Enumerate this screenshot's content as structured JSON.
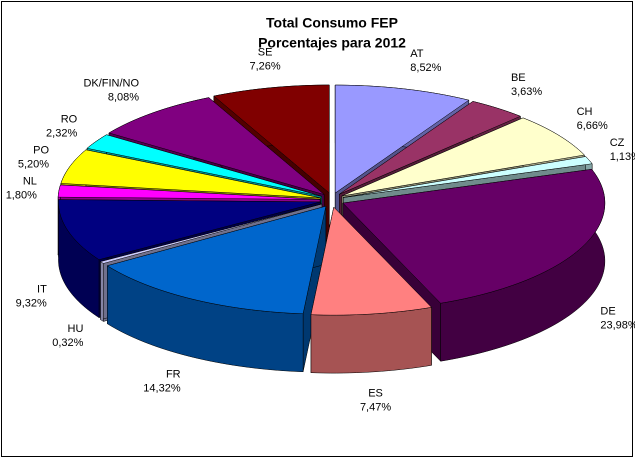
{
  "chart_data": {
    "type": "pie3d",
    "title": "Total Consumo FEP",
    "subtitle": "Porcentajes para 2012",
    "categories": [
      "AT",
      "BE",
      "CH",
      "CZ",
      "DE",
      "ES",
      "FR",
      "HU",
      "IT",
      "NL",
      "PO",
      "RO",
      "DK/FIN/NO",
      "SE"
    ],
    "values": [
      8.52,
      3.63,
      6.66,
      1.13,
      23.98,
      7.47,
      14.32,
      0.32,
      9.32,
      1.8,
      5.2,
      2.32,
      8.08,
      7.26
    ],
    "value_labels": [
      "8,52%",
      "3,63%",
      "6,66%",
      "1,13%",
      "23,98%",
      "7,47%",
      "14,32%",
      "0,32%",
      "9,32%",
      "1,80%",
      "5,20%",
      "2,32%",
      "8,08%",
      "7,26%"
    ],
    "colors": [
      "#9999ff",
      "#993366",
      "#ffffcc",
      "#ccffff",
      "#660066",
      "#ff8080",
      "#0066cc",
      "#ccccff",
      "#000080",
      "#ff00ff",
      "#ffff00",
      "#00ffff",
      "#800080",
      "#800000"
    ]
  }
}
